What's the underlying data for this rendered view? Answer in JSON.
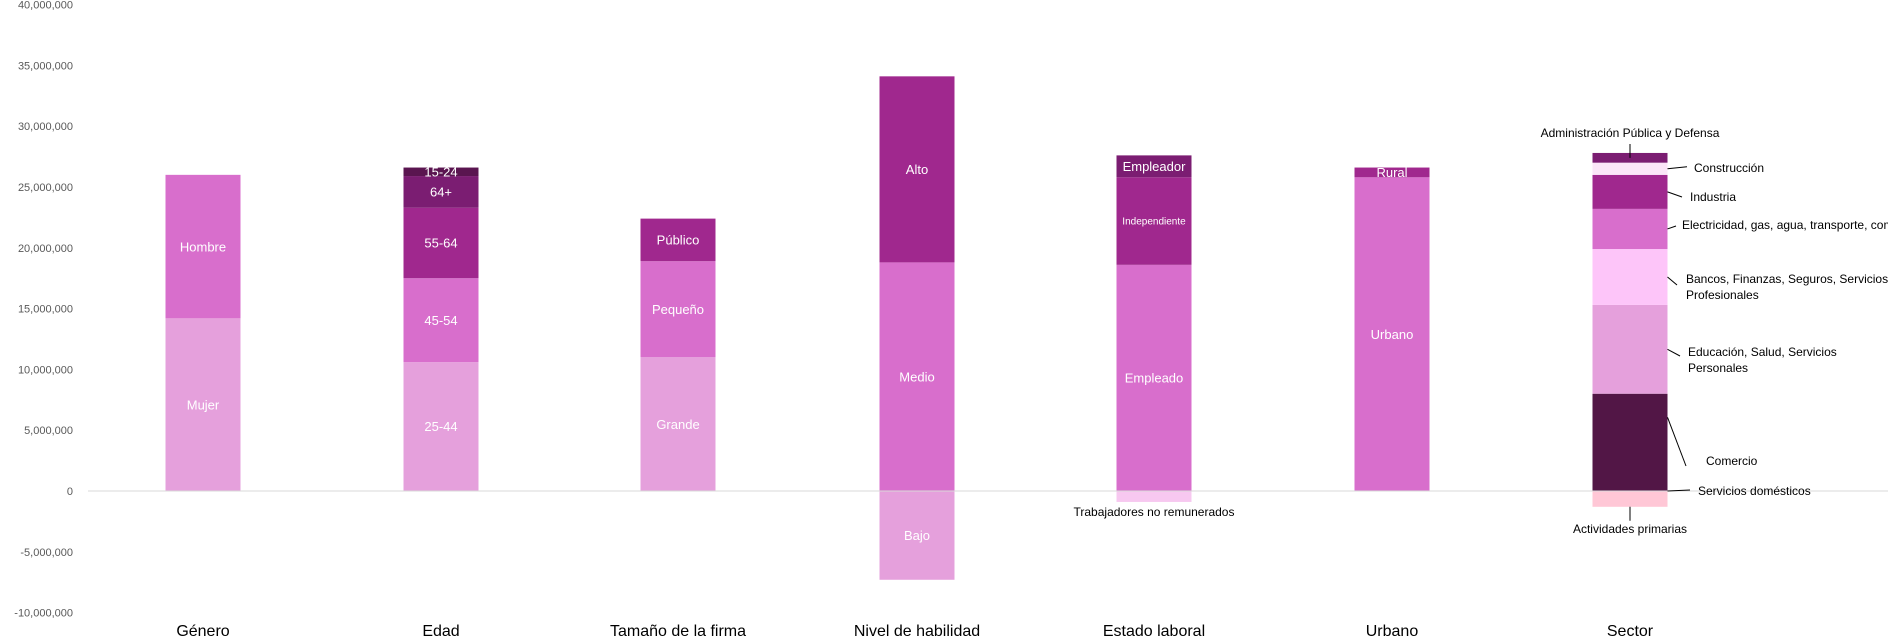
{
  "chart_data": {
    "type": "bar",
    "stacked": true,
    "categories": [
      "Género",
      "Edad",
      "Tamaño de la firma",
      "Nivel de habilidad",
      "Estado laboral",
      "Urbano",
      "Sector"
    ],
    "ylim": [
      -10000000,
      40000000
    ],
    "yticks": [
      -10000000,
      -5000000,
      0,
      5000000,
      10000000,
      15000000,
      20000000,
      25000000,
      30000000,
      35000000,
      40000000
    ],
    "ytick_labels": [
      "-10,000,000",
      "-5,000,000",
      "0",
      "5,000,000",
      "10,000,000",
      "15,000,000",
      "20,000,000",
      "25,000,000",
      "30,000,000",
      "35,000,000",
      "40,000,000"
    ],
    "grid": false,
    "legend": "none",
    "stacks": [
      {
        "category": "Género",
        "segments": [
          {
            "label": "Mujer",
            "value": 14200000,
            "color": "#e5a0dc"
          },
          {
            "label": "Hombre",
            "value": 11800000,
            "color": "#d86ecc"
          }
        ]
      },
      {
        "category": "Edad",
        "segments": [
          {
            "label": "25-44",
            "value": 10600000,
            "color": "#e5a0dc"
          },
          {
            "label": "45-54",
            "value": 6900000,
            "color": "#d86ecc"
          },
          {
            "label": "55-64",
            "value": 5800000,
            "color": "#a0288e"
          },
          {
            "label": "64+",
            "value": 2600000,
            "color": "#7b1d72"
          },
          {
            "label": "15-24",
            "value": 700000,
            "color": "#5a1550"
          }
        ]
      },
      {
        "category": "Tamaño de la firma",
        "segments": [
          {
            "label": "Grande",
            "value": 11000000,
            "color": "#e5a0dc"
          },
          {
            "label": "Pequeño",
            "value": 7900000,
            "color": "#d86ecc"
          },
          {
            "label": "Público",
            "value": 3500000,
            "color": "#a0288e"
          }
        ]
      },
      {
        "category": "Nivel de habilidad",
        "segments": [
          {
            "label": "Bajo",
            "value": -7300000,
            "color": "#e5a0dc"
          },
          {
            "label": "Medio",
            "value": 18800000,
            "color": "#d86ecc"
          },
          {
            "label": "Alto",
            "value": 15300000,
            "color": "#a0288e"
          }
        ]
      },
      {
        "category": "Estado laboral",
        "segments": [
          {
            "label": "Trabajadores no remunerados",
            "value": -900000,
            "color": "#f7c8f0",
            "external": true
          },
          {
            "label": "Empleado",
            "value": 18600000,
            "color": "#d86ecc"
          },
          {
            "label": "Independiente",
            "value": 7200000,
            "color": "#a0288e"
          },
          {
            "label": "Empleador",
            "value": 1800000,
            "color": "#7b1d72"
          }
        ]
      },
      {
        "category": "Urbano",
        "segments": [
          {
            "label": "Urbano",
            "value": 25800000,
            "color": "#d86ecc"
          },
          {
            "label": "Rural",
            "value": 800000,
            "color": "#a0288e"
          }
        ]
      },
      {
        "category": "Sector",
        "segments": [
          {
            "label": "Actividades primarias",
            "value": -1300000,
            "color": "#ffc7d6",
            "external": true
          },
          {
            "label": "Servicios domésticos",
            "value": 0,
            "color": "#ffffff",
            "external": true
          },
          {
            "label": "Comercio",
            "value": 8000000,
            "color": "#521646",
            "external": true
          },
          {
            "label": "Educación, Salud, Servicios Personales",
            "value": 7300000,
            "color": "#e5a0dc",
            "external": true
          },
          {
            "label": "Bancos, Finanzas, Seguros, Servicios Profesionales",
            "value": 4600000,
            "color": "#fdc5f9",
            "external": true
          },
          {
            "label": "Electricidad, gas, agua, transporte, comunicaciones",
            "value": 3300000,
            "color": "#d86ecc",
            "external": true
          },
          {
            "label": "Industria",
            "value": 2800000,
            "color": "#a0288e",
            "external": true
          },
          {
            "label": "Construcción",
            "value": 1000000,
            "color": "#fbe6f8",
            "external": true
          },
          {
            "label": "Administración Pública y Defensa",
            "value": 800000,
            "color": "#7b1d72",
            "external": true
          }
        ]
      }
    ]
  }
}
